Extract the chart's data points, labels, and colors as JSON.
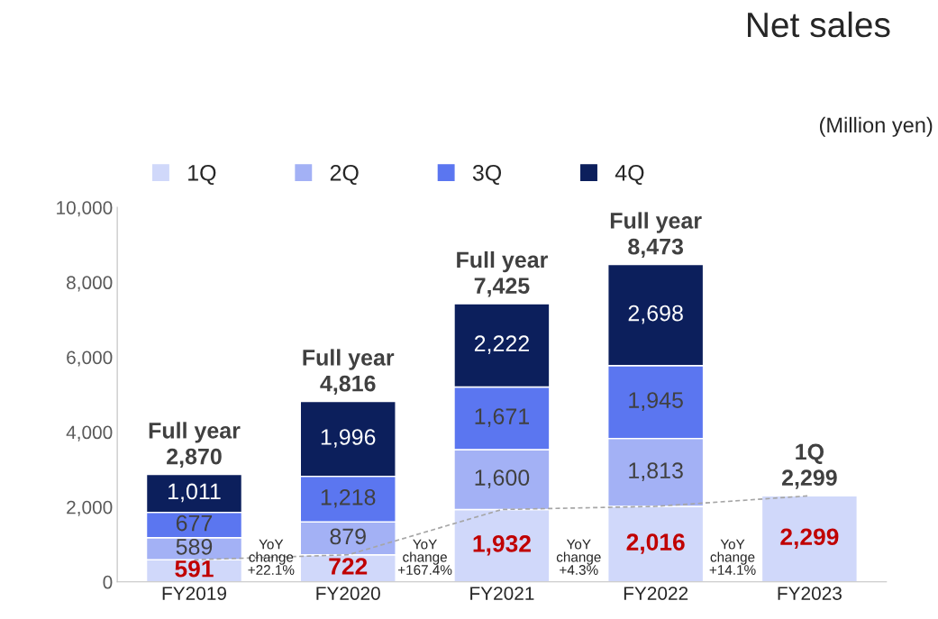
{
  "chart_data": {
    "type": "bar",
    "title": "Net sales",
    "stacked": true,
    "categories": [
      "FY2019",
      "FY2020",
      "FY2021",
      "FY2022",
      "FY2023"
    ],
    "series": [
      {
        "name": "1Q",
        "color": "#d0d8fa",
        "values": [
          591,
          722,
          1932,
          2016,
          2299
        ],
        "value_labels": [
          "591",
          "722",
          "1,932",
          "2,016",
          "2,299"
        ]
      },
      {
        "name": "2Q",
        "color": "#a3b1f5",
        "values": [
          589,
          879,
          1600,
          1813,
          null
        ],
        "value_labels": [
          "589",
          "879",
          "1,600",
          "1,813",
          null
        ]
      },
      {
        "name": "3Q",
        "color": "#5b76f0",
        "values": [
          677,
          1218,
          1671,
          1945,
          null
        ],
        "value_labels": [
          "677",
          "1,218",
          "1,671",
          "1,945",
          null
        ]
      },
      {
        "name": "4Q",
        "color": "#0c1f5c",
        "values": [
          1011,
          1996,
          2222,
          2698,
          null
        ],
        "value_labels": [
          "1,011",
          "1,996",
          "2,222",
          "2,698",
          null
        ]
      },
      {
        "type": "line",
        "color": "#a6a6a6",
        "line_style": "dashed",
        "values": [
          591,
          722,
          1932,
          2016,
          2299
        ]
      }
    ],
    "totals": [
      "Full year\n2,870",
      "Full year\n4,816",
      "Full year\n7,425",
      "Full year\n8,473",
      "1Q\n2,299"
    ],
    "annotations": [
      "(Million yen)",
      "YoY\nchange\n+22.1%",
      "YoY\nchange\n+167.4%",
      "YoY\nchange\n+4.3%",
      "YoY\nchange\n+14.1%"
    ],
    "ylim": [
      0,
      10000
    ],
    "yticks": [
      0,
      {
        "value": 2000,
        "label": "2,000"
      },
      {
        "value": 4000,
        "label": "4,000"
      },
      {
        "value": 6000,
        "label": "6,000"
      },
      {
        "value": 8000,
        "label": "8,000"
      },
      {
        "value": 10000,
        "label": "10,000"
      }
    ],
    "legend": "top",
    "grid": false
  }
}
